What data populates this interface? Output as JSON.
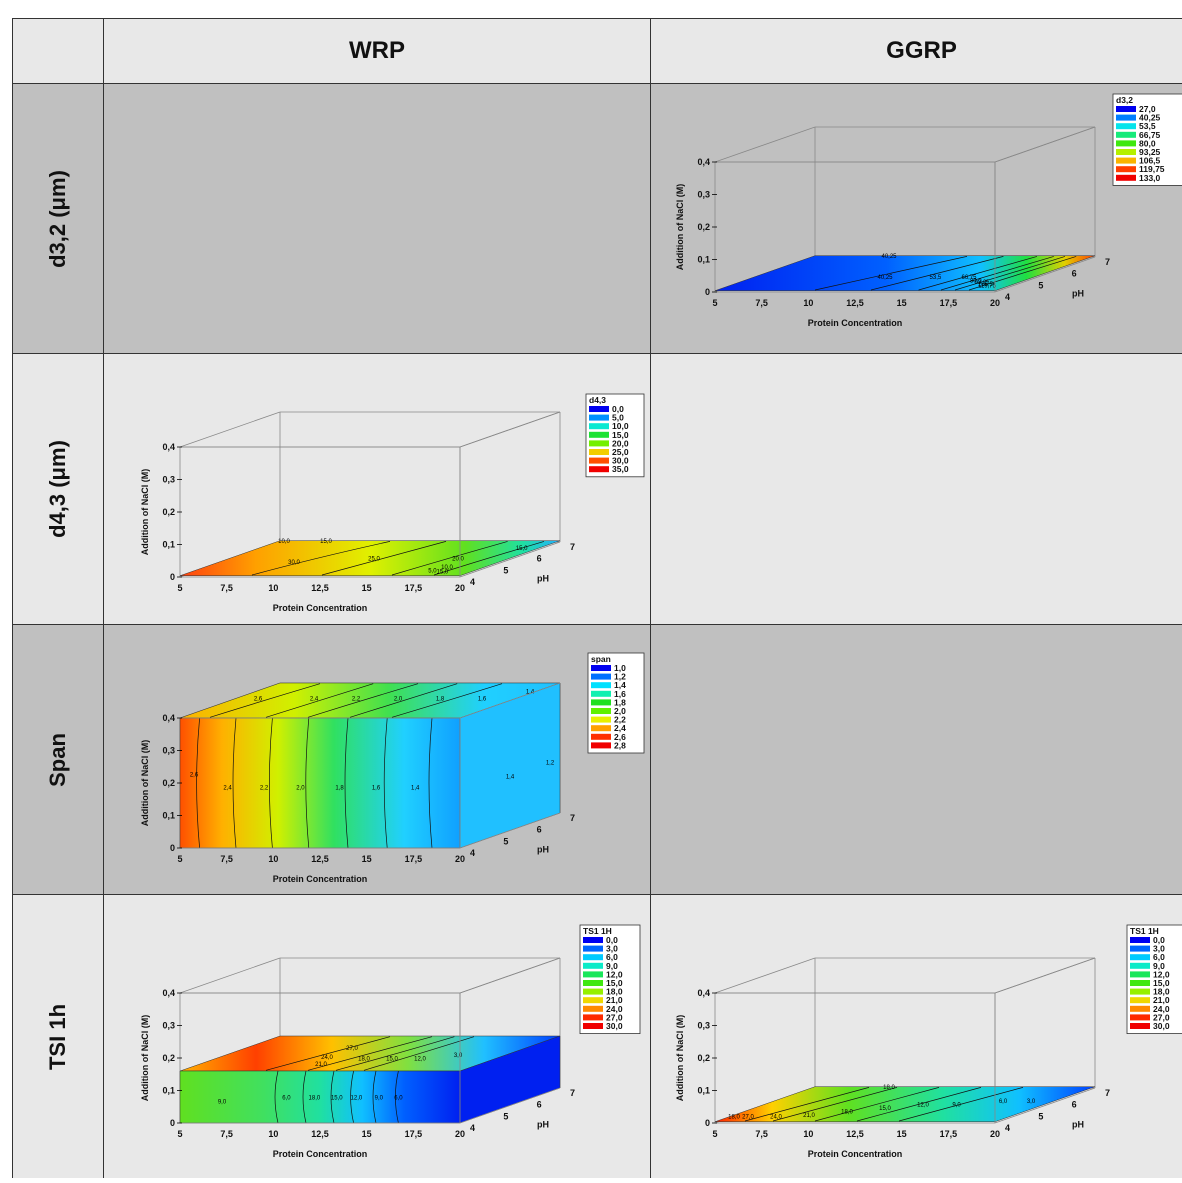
{
  "header": {
    "col1": "WRP",
    "col2": "GGRP"
  },
  "rows": [
    {
      "label": "d3,2 (μm)"
    },
    {
      "label": "d4,3 (μm)"
    },
    {
      "label": "Span"
    },
    {
      "label": "TSI 1h"
    }
  ],
  "axes": {
    "xlabel": "Protein Concentration",
    "ylabel": "Addition of NaCl (M)",
    "zlabel": "pH",
    "xticks": [
      "5",
      "7,5",
      "10",
      "12,5",
      "15",
      "17,5",
      "20"
    ],
    "yticks": [
      "0",
      "0,1",
      "0,2",
      "0,3",
      "0,4"
    ],
    "zticks": [
      "4",
      "5",
      "6",
      "7"
    ]
  },
  "chart_data": [
    {
      "id": "d32-ggrp",
      "type": "contour-surface-3d",
      "title": "d3,2",
      "legend_values": [
        "27,0",
        "40,25",
        "53,5",
        "66,75",
        "80,0",
        "93,25",
        "106,5",
        "119,75",
        "133,0"
      ],
      "contour_labels": [
        "40,25",
        "53,5",
        "66,75",
        "80,0",
        "93,25",
        "106,5",
        "119,75",
        "40,25"
      ],
      "ylim": [
        0,
        0.4
      ],
      "xlim": [
        5,
        20
      ],
      "zlim": [
        4,
        7
      ]
    },
    {
      "id": "d43-wrp",
      "type": "contour-surface-3d",
      "title": "d4,3",
      "legend_values": [
        "0,0",
        "5,0",
        "10,0",
        "15,0",
        "20,0",
        "25,0",
        "30,0",
        "35,0"
      ],
      "contour_labels": [
        "10,0",
        "15,0",
        "30,0",
        "25,0",
        "20,0",
        "15,0",
        "10,0",
        "5,0",
        "15,0"
      ],
      "ylim": [
        0,
        0.4
      ],
      "xlim": [
        5,
        20
      ],
      "zlim": [
        4,
        7
      ]
    },
    {
      "id": "span-wrp",
      "type": "contour-surface-3d",
      "title": "span",
      "legend_values": [
        "1,0",
        "1,2",
        "1,4",
        "1,6",
        "1,8",
        "2,0",
        "2,2",
        "2,4",
        "2,6",
        "2,8"
      ],
      "contour_labels": [
        "2,6",
        "2,4",
        "2,2",
        "2,0",
        "1,8",
        "1,6",
        "1,4",
        "2,6",
        "2,4",
        "2,2",
        "2,0",
        "1,8",
        "1,6",
        "1,4",
        "1,4",
        "1,2"
      ],
      "ylim": [
        0,
        0.4
      ],
      "xlim": [
        5,
        20
      ],
      "zlim": [
        4,
        7
      ]
    },
    {
      "id": "tsi-wrp",
      "type": "contour-surface-3d",
      "title": "TS1 1H",
      "legend_values": [
        "0,0",
        "3,0",
        "6,0",
        "9,0",
        "12,0",
        "15,0",
        "18,0",
        "21,0",
        "24,0",
        "27,0",
        "30,0"
      ],
      "contour_labels": [
        "27,0",
        "24,0",
        "21,0",
        "18,0",
        "15,0",
        "12,0",
        "9,0",
        "6,0",
        "18,0",
        "15,0",
        "12,0",
        "9,0",
        "6,0",
        "3,0"
      ],
      "ylim": [
        0,
        0.4
      ],
      "xlim": [
        5,
        20
      ],
      "zlim": [
        4,
        7
      ]
    },
    {
      "id": "tsi-ggrp",
      "type": "contour-surface-3d",
      "title": "TS1 1H",
      "legend_values": [
        "0,0",
        "3,0",
        "6,0",
        "9,0",
        "12,0",
        "15,0",
        "18,0",
        "21,0",
        "24,0",
        "27,0",
        "30,0"
      ],
      "contour_labels": [
        "18,0",
        "27,0",
        "24,0",
        "21,0",
        "18,0",
        "15,0",
        "12,0",
        "9,0",
        "6,0",
        "3,0",
        "18,0"
      ],
      "ylim": [
        0,
        0.4
      ],
      "xlim": [
        5,
        20
      ],
      "zlim": [
        4,
        7
      ]
    }
  ]
}
